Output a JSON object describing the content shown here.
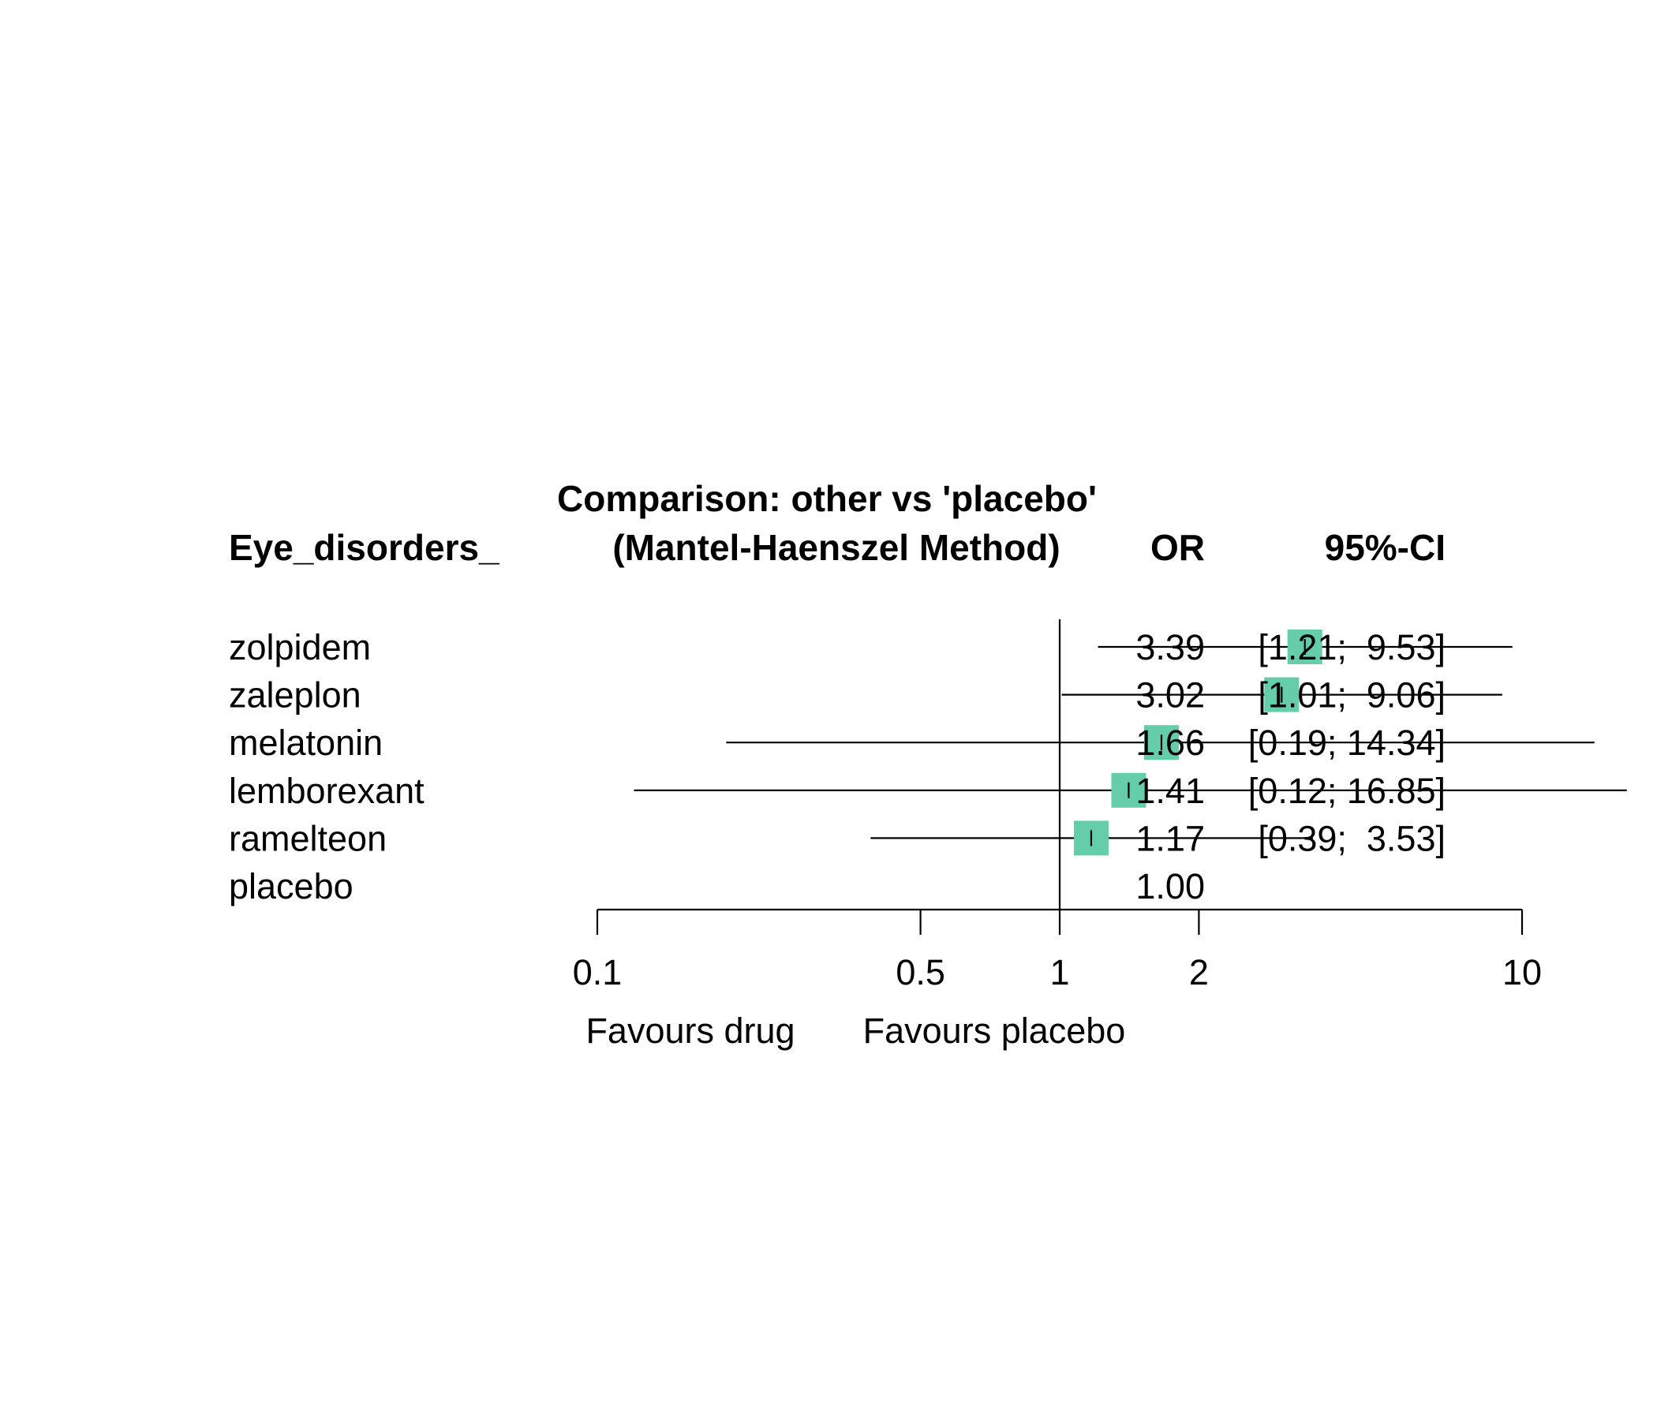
{
  "chart_data": {
    "type": "forest",
    "title": "Comparison: other vs 'placebo'",
    "subtitle": "(Mantel-Haenszel Method)",
    "column_headers": {
      "label": "Eye_disorders_",
      "estimate": "OR",
      "ci": "95%-CI"
    },
    "x_scale": "log",
    "xlim": [
      0.1,
      10
    ],
    "x_ticks": [
      0.1,
      0.5,
      1,
      2,
      10
    ],
    "x_tick_labels": [
      "0.1",
      "0.5",
      "1",
      "2",
      "10"
    ],
    "reference_line": 1,
    "xlabel_left": "Favours drug",
    "xlabel_right": "Favours placebo",
    "marker_color": "#66CDAA",
    "rows": [
      {
        "name": "zolpidem",
        "or": 3.39,
        "lower": 1.21,
        "upper": 9.53,
        "or_text": "3.39",
        "ci_text": "[1.21;  9.53]"
      },
      {
        "name": "zaleplon",
        "or": 3.02,
        "lower": 1.01,
        "upper": 9.06,
        "or_text": "3.02",
        "ci_text": "[1.01;  9.06]"
      },
      {
        "name": "melatonin",
        "or": 1.66,
        "lower": 0.19,
        "upper": 14.34,
        "or_text": "1.66",
        "ci_text": "[0.19; 14.34]"
      },
      {
        "name": "lemborexant",
        "or": 1.41,
        "lower": 0.12,
        "upper": 16.85,
        "or_text": "1.41",
        "ci_text": "[0.12; 16.85]"
      },
      {
        "name": "ramelteon",
        "or": 1.17,
        "lower": 0.39,
        "upper": 3.53,
        "or_text": "1.17",
        "ci_text": "[0.39;  3.53]"
      },
      {
        "name": "placebo",
        "or": 1.0,
        "or_text": "1.00",
        "ci_text": ""
      }
    ]
  }
}
